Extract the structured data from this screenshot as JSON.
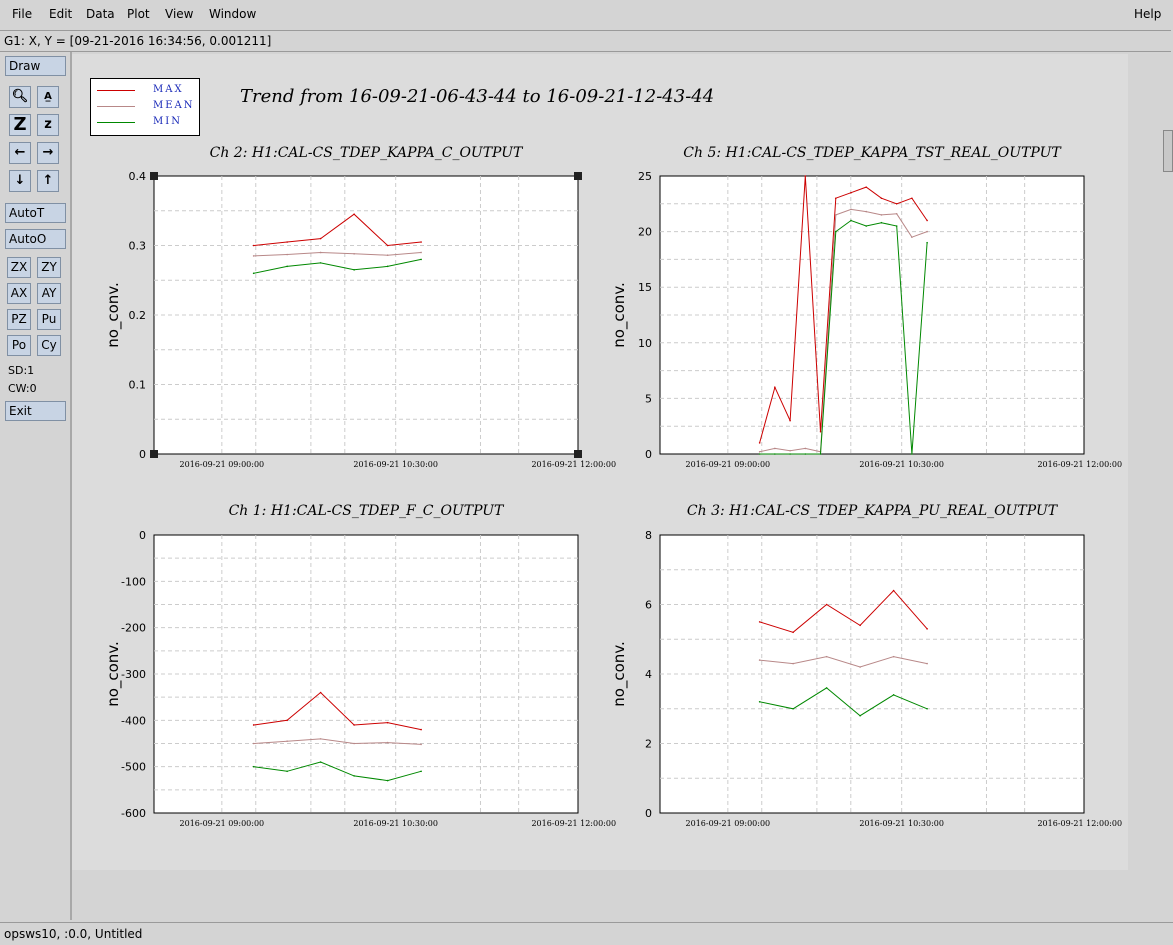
{
  "menubar": {
    "items": [
      "File",
      "Edit",
      "Data",
      "Plot",
      "View",
      "Window"
    ],
    "help": "Help"
  },
  "coordbar": {
    "text": "G1: X, Y = [09-21-2016 16:34:56, 0.001211]"
  },
  "toolbar": {
    "draw": "Draw",
    "autot": "AutoT",
    "autoo": "AutoO",
    "zoom_buttons": [
      "ZX",
      "ZY",
      "AX",
      "AY",
      "PZ",
      "Pu",
      "Po",
      "Cy"
    ],
    "sd": "SD:1",
    "cw": "CW:0",
    "exit": "Exit"
  },
  "status": {
    "text": "opsws10, :0.0, Untitled"
  },
  "legend": {
    "max": "MAX",
    "mean": "MEAN",
    "min": "MIN",
    "colors": {
      "max": "#cc0000",
      "mean": "#b88888",
      "min": "#008800"
    }
  },
  "title": "Trend from 16-09-21-06-43-44 to 16-09-21-12-43-44",
  "x_ticks": [
    "2016-09-21 09:00:00",
    "2016-09-21 10:30:00",
    "2016-09-21 12:00:00"
  ],
  "chart_data": [
    {
      "type": "line",
      "title": "Ch 2: H1:CAL-CS_TDEP_KAPPA_C_OUTPUT",
      "ylabel": "no_conv.",
      "ylim": [
        0,
        0.4
      ],
      "yticks": [
        "0",
        "0.1",
        "0.2",
        "0.3",
        "0.4"
      ],
      "grid": true,
      "series": [
        {
          "name": "MAX",
          "values": [
            0.3,
            0.305,
            0.31,
            0.345,
            0.3,
            0.305
          ]
        },
        {
          "name": "MEAN",
          "values": [
            0.285,
            0.287,
            0.29,
            0.288,
            0.286,
            0.29
          ]
        },
        {
          "name": "MIN",
          "values": [
            0.26,
            0.27,
            0.275,
            0.265,
            0.27,
            0.28
          ]
        }
      ]
    },
    {
      "type": "line",
      "title": "Ch 5: H1:CAL-CS_TDEP_KAPPA_TST_REAL_OUTPUT",
      "ylabel": "no_conv.",
      "ylim": [
        0,
        25
      ],
      "yticks": [
        "0",
        "5",
        "10",
        "15",
        "20",
        "25"
      ],
      "grid": true,
      "series": [
        {
          "name": "MAX",
          "values": [
            1,
            6,
            3,
            25,
            2,
            23,
            23.5,
            24,
            23,
            22.5,
            23,
            21
          ]
        },
        {
          "name": "MEAN",
          "values": [
            0.2,
            0.5,
            0.3,
            0.5,
            0.2,
            21.5,
            22,
            21.8,
            21.5,
            21.6,
            19.5,
            20
          ]
        },
        {
          "name": "MIN",
          "values": [
            0,
            0,
            0,
            0,
            0,
            20,
            21,
            20.5,
            20.8,
            20.5,
            0,
            19
          ]
        }
      ]
    },
    {
      "type": "line",
      "title": "Ch 1: H1:CAL-CS_TDEP_F_C_OUTPUT",
      "ylabel": "no_conv.",
      "ylim": [
        -600,
        0
      ],
      "yticks": [
        "-600",
        "-500",
        "-400",
        "-300",
        "-200",
        "-100",
        "0"
      ],
      "grid": true,
      "series": [
        {
          "name": "MAX",
          "values": [
            -410,
            -400,
            -340,
            -410,
            -405,
            -420
          ]
        },
        {
          "name": "MEAN",
          "values": [
            -450,
            -445,
            -440,
            -450,
            -448,
            -452
          ]
        },
        {
          "name": "MIN",
          "values": [
            -500,
            -510,
            -490,
            -520,
            -530,
            -510
          ]
        }
      ]
    },
    {
      "type": "line",
      "title": "Ch 3: H1:CAL-CS_TDEP_KAPPA_PU_REAL_OUTPUT",
      "ylabel": "no_conv.",
      "ylim": [
        0,
        8
      ],
      "yticks": [
        "0",
        "2",
        "4",
        "6",
        "8"
      ],
      "grid": true,
      "series": [
        {
          "name": "MAX",
          "values": [
            5.5,
            5.2,
            6.0,
            5.4,
            6.4,
            5.3
          ]
        },
        {
          "name": "MEAN",
          "values": [
            4.4,
            4.3,
            4.5,
            4.2,
            4.5,
            4.3
          ]
        },
        {
          "name": "MIN",
          "values": [
            3.2,
            3.0,
            3.6,
            2.8,
            3.4,
            3.0
          ]
        }
      ]
    }
  ]
}
